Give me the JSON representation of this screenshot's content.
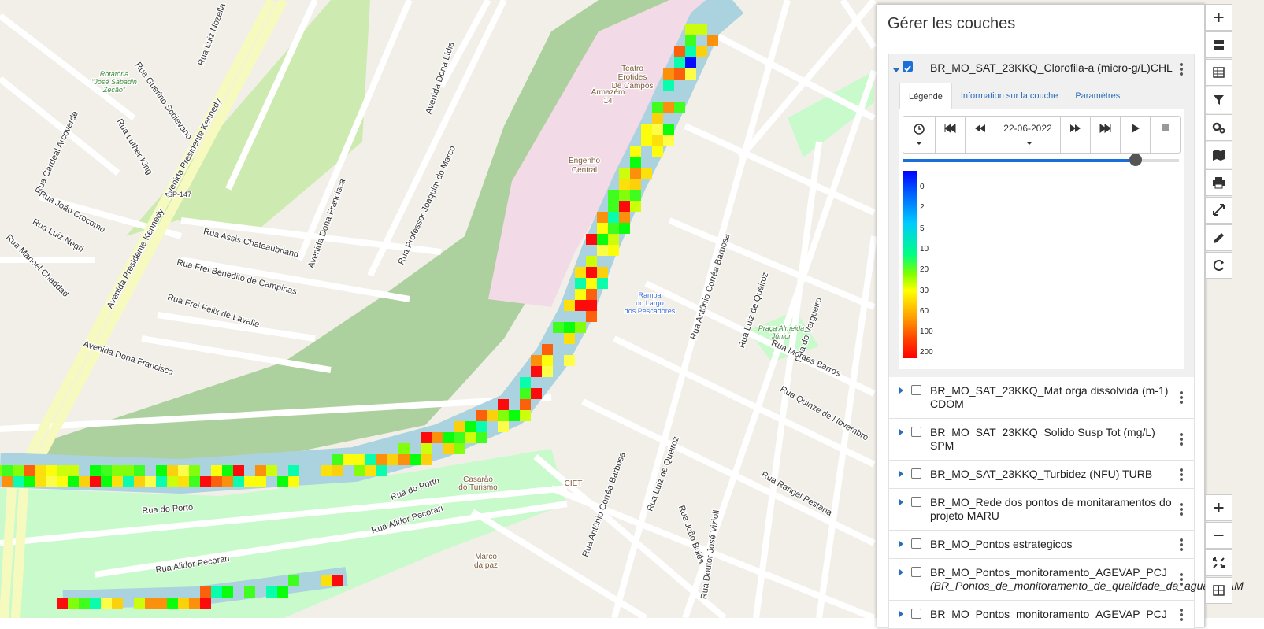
{
  "panel": {
    "title": "Gérer les couches",
    "active_layer": {
      "name": "BR_MO_SAT_23KKQ_Clorofila-a (micro-g/L)CHL",
      "tabs": [
        "Légende",
        "Information sur la couche",
        "Paramètres"
      ],
      "date": "22-06-2022",
      "legend": [
        0,
        2,
        5,
        10,
        20,
        30,
        60,
        100,
        200
      ]
    },
    "layers": [
      {
        "name": "BR_MO_SAT_23KKQ_Mat orga dissolvida (m-1) CDOM"
      },
      {
        "name": "BR_MO_SAT_23KKQ_Solido Susp Tot (mg/L) SPM"
      },
      {
        "name": "BR_MO_SAT_23KKQ_Turbidez (NFU) TURB"
      },
      {
        "name": "BR_MO_Rede dos pontos de monitaramentos do projeto MARU"
      },
      {
        "name": "BR_MO_Pontos estrategicos"
      },
      {
        "name": "BR_MO_Pontos_monitoramento_AGEVAP_PCJ",
        "source": "(BR_Pontos_de_monitoramento_de_qualidade_da_agua_IGAM"
      },
      {
        "name": "BR_MO_Pontos_monitoramento_AGEVAP_PCJ"
      }
    ]
  },
  "map": {
    "labels": [
      "Avenida Presidente Kennedy",
      "Avenida Presidente Kennedy",
      "SP-147",
      "Rua Luther King",
      "Rua Cardeal Arcoverde",
      "Rua Guerino Schievano",
      "Rua Luiz Nozella",
      "Rua João Crócomo",
      "Rua Luiz Negri",
      "Rua Manoel Chaddad",
      "Rua Assis Chateaubriand",
      "Rua Frei Benedito de Campinas",
      "Rua Frei Felix de Lavalle",
      "Avenida Dona Francisca",
      "Avenida Dona Francisca",
      "Avenida Dona Lídia",
      "Rua Professor Joaquim do Marco",
      "Engenho",
      "Central",
      "Teatro",
      "Erotides",
      "De Campos",
      "Armazém",
      "14",
      "Rampa",
      "do Largo",
      "dos Pescadores",
      "Rua Antônio Corrêa Barbosa",
      "Rua Luiz de Queiroz",
      "Praça Almeida",
      "Júnior",
      "Rua do Vergueiro",
      "Rua Moraes Barros",
      "Rua Quinze de Novembro",
      "Rua Rangel Pestana",
      "CIET",
      "Casarão",
      "do Turismo",
      "Rua do Porto",
      "Rua do Porto",
      "Rua Alidor Pecorari",
      "Rua Alidor Pecorari",
      "Marco",
      "da paz",
      "Rua Antônio Corrêa Barbosa",
      "Rua Luiz de Queiroz",
      "Rua João Bolés",
      "Rua Doutor José Vizioli",
      "Rotatória",
      "\"José Sabadin",
      "Zecão\""
    ]
  }
}
